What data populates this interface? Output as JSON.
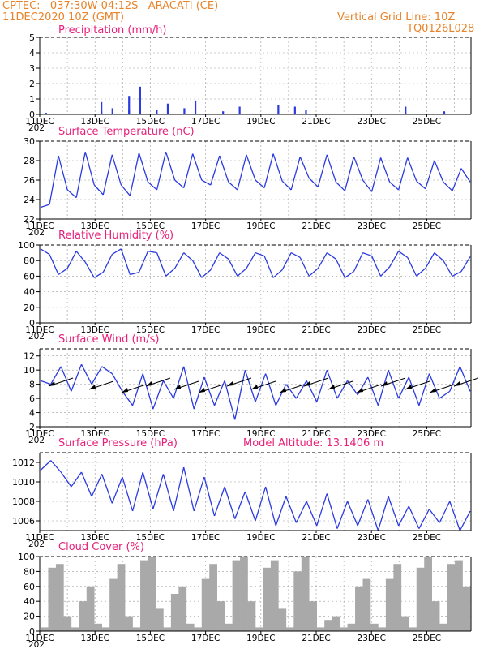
{
  "header": {
    "line1": "CPTEC:   037:30W-04:12S   ARACATI (CE)",
    "line2": "11DEC2020 10Z (GMT)",
    "grid_note": "Vertical Grid Line: 10Z",
    "code": "TQ0126L028"
  },
  "x_labels": [
    "11DEC",
    "13DEC",
    "15DEC",
    "17DEC",
    "19DEC",
    "21DEC",
    "23DEC",
    "25DEC"
  ],
  "year_fragment": "202",
  "colors": {
    "header": "#e8832a",
    "title": "#e8207a",
    "line": "#2a3ae0",
    "cloud": "#a9a9a9"
  },
  "chart_data": [
    {
      "type": "bar",
      "title": "Precipitation (mm/h)",
      "ylim": [
        0,
        5
      ],
      "yticks": [
        "0",
        "1",
        "2",
        "3",
        "4",
        "5"
      ],
      "x": [
        "11DEC",
        "12DEC",
        "13DEC",
        "13DEC",
        "13DEC",
        "14DEC",
        "14DEC",
        "14DEC",
        "14DEC",
        "15DEC",
        "15DEC",
        "16DEC",
        "16DEC",
        "17DEC",
        "18DEC",
        "19DEC",
        "20DEC",
        "20DEC",
        "24DEC",
        "25DEC"
      ],
      "values": [
        0.1,
        0.05,
        0.8,
        0.4,
        0.2,
        1.8,
        1.2,
        0.4,
        0.3,
        0.7,
        0.3,
        0.9,
        0.4,
        0.2,
        0.5,
        0.6,
        0.5,
        0.3,
        0.5,
        0.2
      ]
    },
    {
      "type": "line",
      "title": "Surface Temperature (nC)",
      "ylim": [
        22,
        30
      ],
      "yticks": [
        "22",
        "24",
        "26",
        "28",
        "30"
      ],
      "series": [
        {
          "values": [
            23.2,
            23.5,
            28.5,
            25.0,
            24.2,
            28.9,
            25.5,
            24.5,
            28.6,
            25.5,
            24.4,
            28.8,
            25.8,
            25.0,
            28.9,
            26.0,
            25.2,
            28.7,
            26.0,
            25.5,
            28.5,
            25.8,
            25.0,
            28.6,
            26.0,
            25.2,
            28.7,
            25.9,
            25.0,
            28.4,
            26.2,
            25.3,
            28.6,
            25.8,
            24.9,
            28.4,
            26.0,
            24.8,
            28.3,
            25.8,
            25.0,
            28.3,
            25.9,
            25.1,
            28.0,
            25.8,
            24.9,
            27.2,
            25.8
          ]
        }
      ]
    },
    {
      "type": "line",
      "title": "Relative Humidity (%)",
      "ylim": [
        0,
        100
      ],
      "yticks": [
        "0",
        "20",
        "40",
        "60",
        "80",
        "100"
      ],
      "series": [
        {
          "values": [
            95,
            88,
            62,
            70,
            92,
            78,
            58,
            65,
            88,
            95,
            62,
            65,
            92,
            90,
            60,
            70,
            90,
            80,
            58,
            68,
            90,
            82,
            60,
            70,
            90,
            86,
            58,
            68,
            90,
            84,
            60,
            70,
            90,
            82,
            58,
            66,
            90,
            86,
            60,
            72,
            92,
            84,
            60,
            70,
            90,
            80,
            60,
            66,
            85
          ]
        }
      ]
    },
    {
      "type": "line",
      "title": "Surface Wind (m/s)",
      "ylim": [
        2,
        13
      ],
      "yticks": [
        "2",
        "4",
        "6",
        "8",
        "10",
        "12"
      ],
      "series": [
        {
          "values": [
            8.5,
            8.0,
            10.5,
            7.0,
            10.8,
            8.0,
            10.5,
            9.5,
            7.0,
            5.0,
            9.5,
            4.5,
            8.5,
            6.0,
            10.5,
            4.5,
            9.0,
            5.0,
            8.5,
            3.0,
            10.0,
            5.5,
            9.5,
            5.0,
            8.0,
            6.0,
            8.5,
            5.5,
            10.0,
            6.0,
            8.5,
            6.5,
            9.0,
            5.0,
            10.0,
            6.0,
            9.0,
            5.0,
            9.5,
            6.0,
            7.0,
            10.5,
            7.0
          ]
        }
      ]
    },
    {
      "type": "line",
      "title": "Surface Pressure (hPa)",
      "annotation": "Model Altitude: 13.1406 m",
      "ylim": [
        1005,
        1013
      ],
      "yticks": [
        "1006",
        "1008",
        "1010",
        "1012"
      ],
      "series": [
        {
          "values": [
            1011.2,
            1012.2,
            1011.0,
            1009.5,
            1011.0,
            1008.5,
            1010.8,
            1007.8,
            1010.5,
            1007.0,
            1011.0,
            1007.2,
            1010.8,
            1007.0,
            1011.5,
            1007.0,
            1010.5,
            1006.5,
            1009.5,
            1006.2,
            1009.0,
            1006.0,
            1009.5,
            1005.5,
            1008.5,
            1005.8,
            1008.0,
            1005.5,
            1008.8,
            1005.2,
            1008.0,
            1005.5,
            1008.2,
            1005.0,
            1008.5,
            1005.5,
            1007.5,
            1005.2,
            1007.2,
            1005.8,
            1008.0,
            1005.0,
            1007.0
          ]
        }
      ]
    },
    {
      "type": "area",
      "title": "Cloud Cover (%)",
      "ylim": [
        0,
        100
      ],
      "yticks": [
        "0",
        "20",
        "40",
        "60",
        "80",
        "100"
      ],
      "series": [
        {
          "values": [
            5,
            85,
            90,
            20,
            5,
            40,
            60,
            10,
            5,
            70,
            90,
            20,
            5,
            95,
            100,
            30,
            5,
            50,
            60,
            10,
            5,
            70,
            90,
            40,
            10,
            95,
            100,
            40,
            5,
            85,
            95,
            30,
            5,
            80,
            100,
            40,
            5,
            15,
            20,
            5,
            10,
            60,
            70,
            10,
            5,
            70,
            90,
            20,
            5,
            85,
            100,
            40,
            10,
            90,
            95,
            60
          ]
        }
      ]
    }
  ]
}
